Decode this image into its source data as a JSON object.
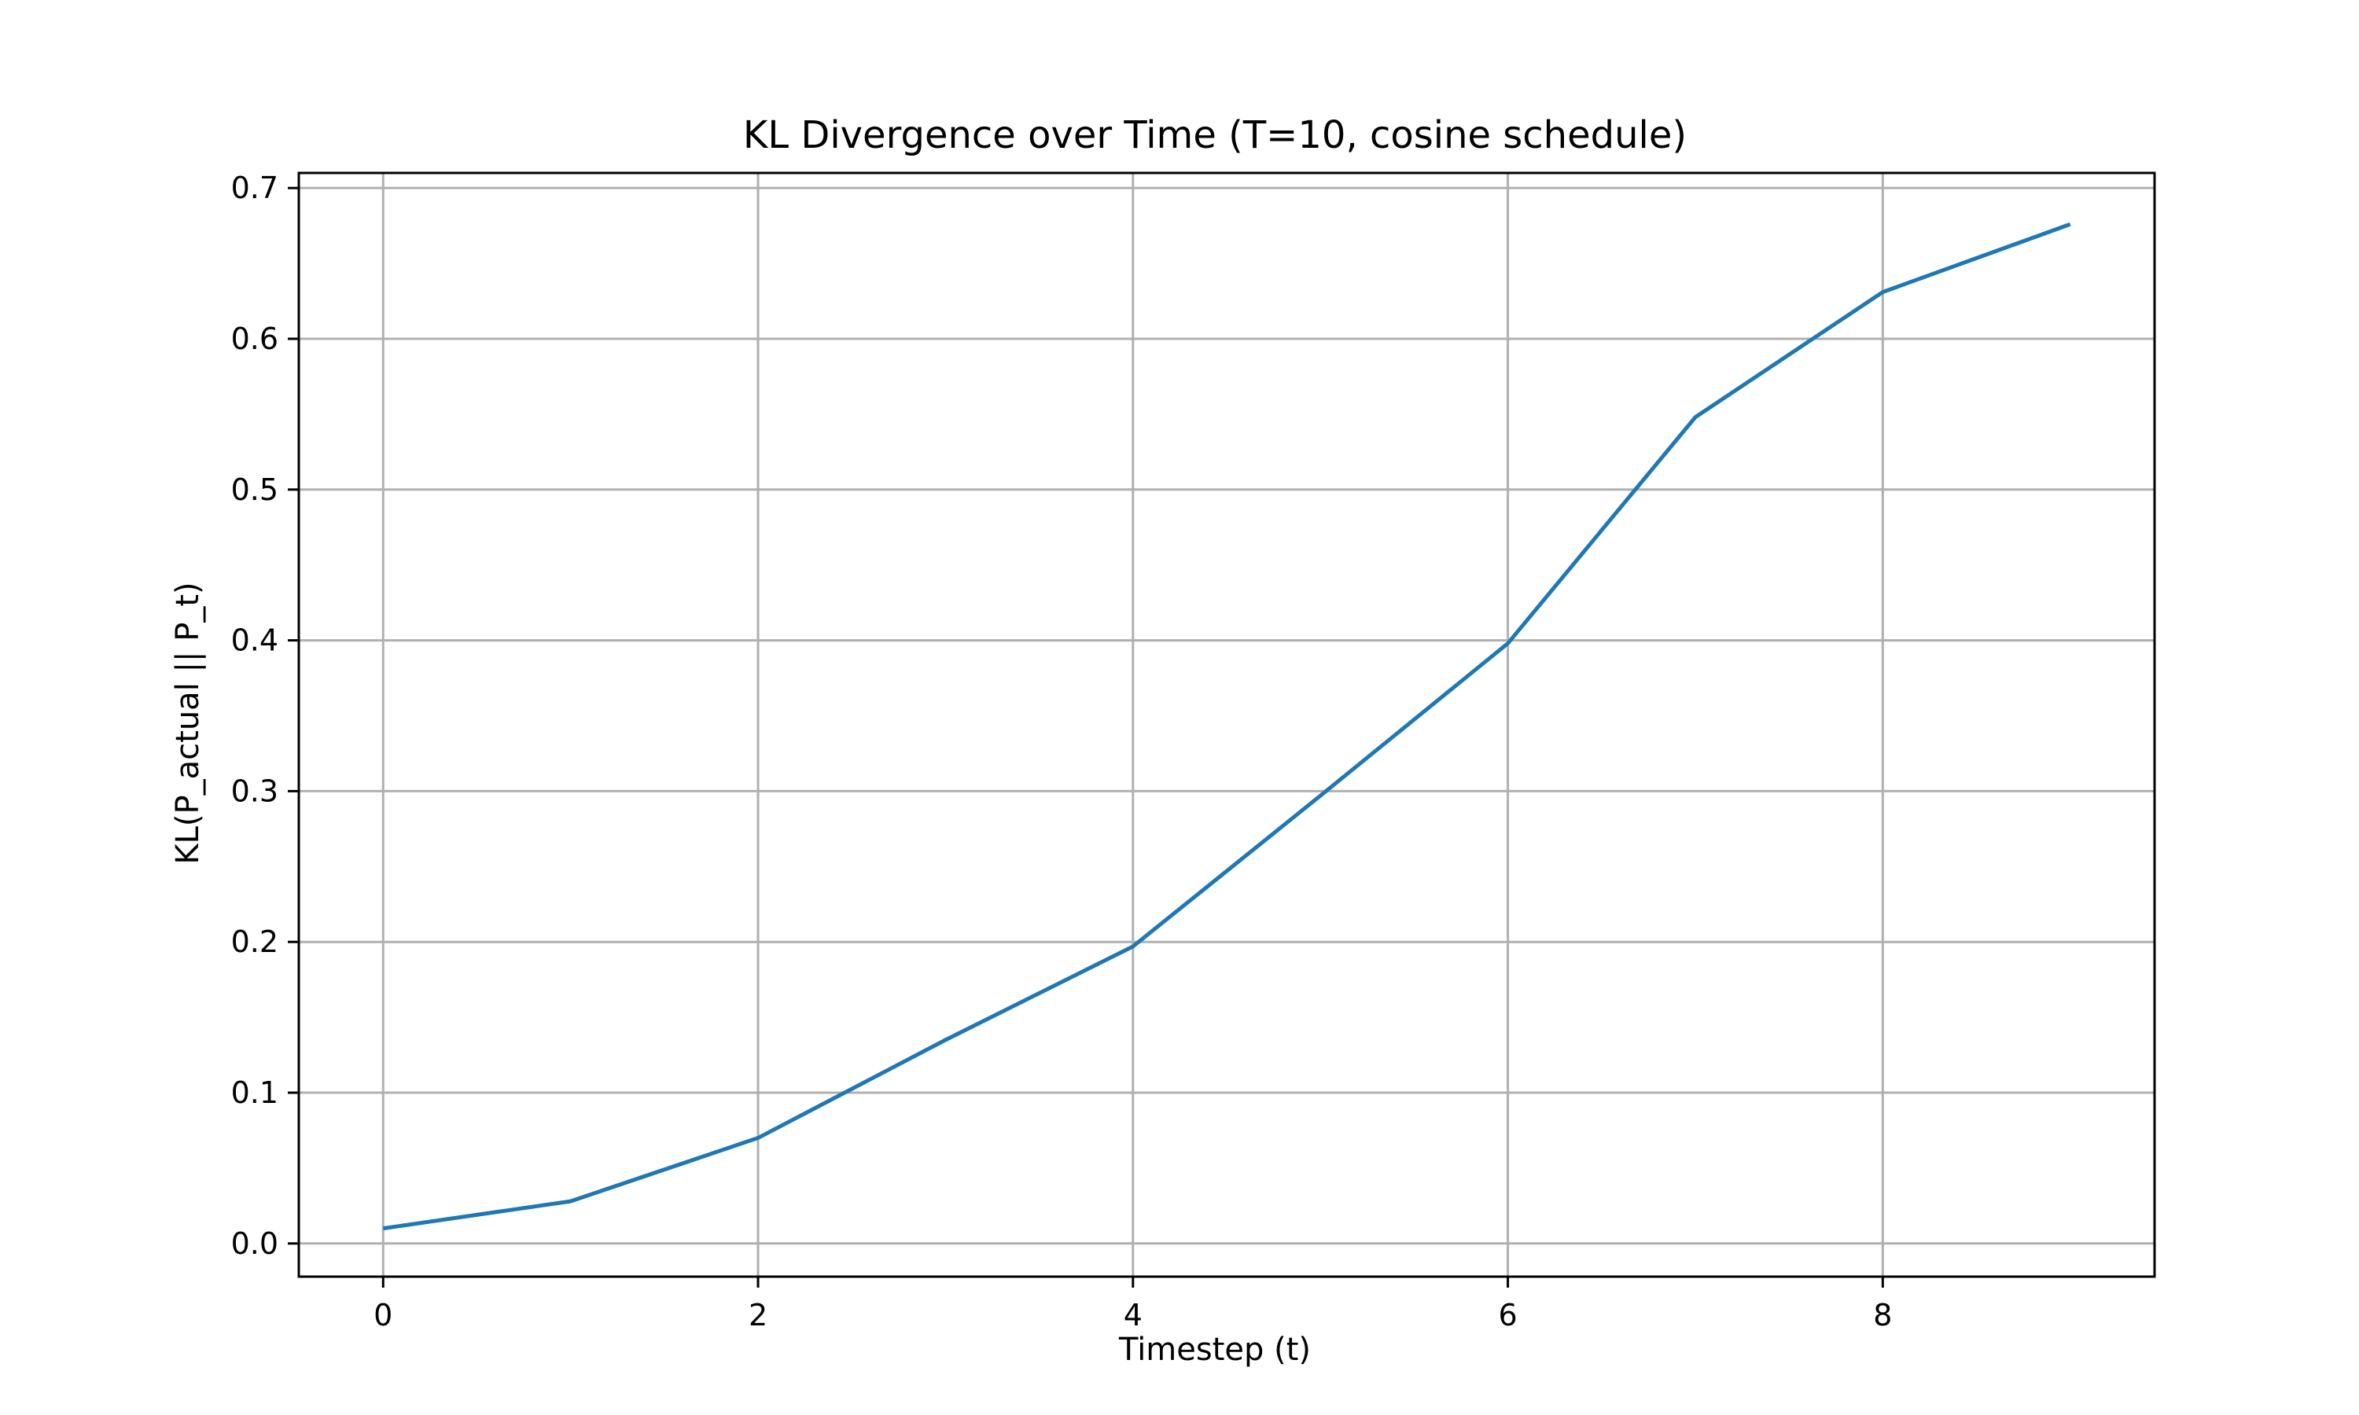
{
  "chart_data": {
    "type": "line",
    "title": "KL Divergence over Time (T=10, cosine schedule)",
    "xlabel": "Timestep (t)",
    "ylabel": "KL(P_actual || P_t)",
    "x": [
      0,
      1,
      2,
      3,
      4,
      5,
      6,
      7,
      8,
      9
    ],
    "series": [
      {
        "values": [
          0.01,
          0.028,
          0.07,
          0.135,
          0.197,
          0.297,
          0.398,
          0.548,
          0.631,
          0.676
        ],
        "color": "#1f77b4"
      }
    ],
    "xlim": [
      -0.45,
      9.45
    ],
    "ylim": [
      -0.022,
      0.71
    ],
    "xticks": [
      0,
      2,
      4,
      6,
      8
    ],
    "xtick_labels": [
      "0",
      "2",
      "4",
      "6",
      "8"
    ],
    "yticks": [
      0.0,
      0.1,
      0.2,
      0.3,
      0.4,
      0.5,
      0.6,
      0.7
    ],
    "ytick_labels": [
      "0.0",
      "0.1",
      "0.2",
      "0.3",
      "0.4",
      "0.5",
      "0.6",
      "0.7"
    ],
    "grid": true,
    "legend": "none"
  }
}
